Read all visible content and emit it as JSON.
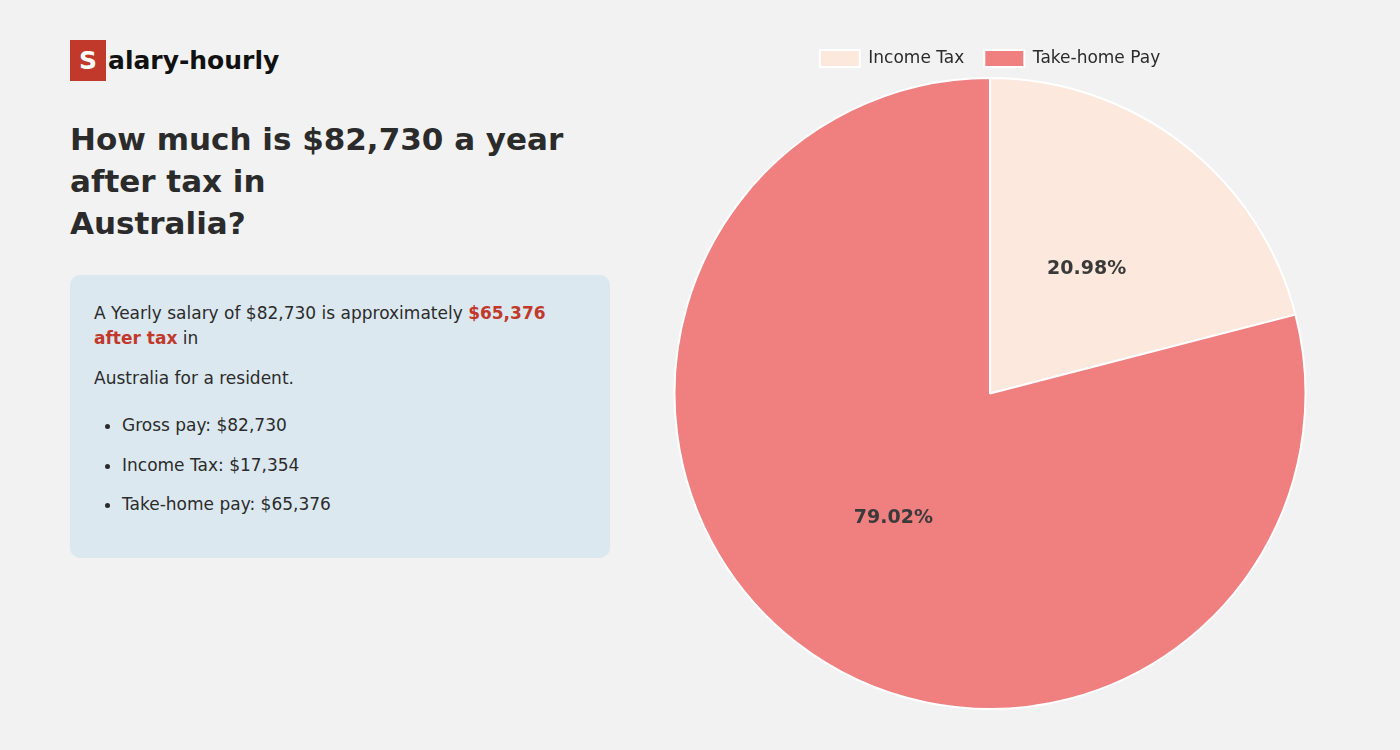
{
  "chart_data": {
    "type": "pie",
    "title": [
      "How much is $82,730 a year after tax in",
      "Australia?"
    ],
    "annotations": {
      "logo": [
        {
          "text": "S",
          "color": "#c0392b"
        },
        {
          "text": "alary-hourly"
        }
      ],
      "summary": [
        [
          {
            "text": "A Yearly salary of $82,730 is approximately "
          },
          {
            "text": "$65,376 after tax",
            "color": "#c0392b"
          },
          {
            "text": " in"
          }
        ],
        [
          {
            "text": "Australia for a resident."
          }
        ]
      ],
      "bullets": [
        "Gross pay: $82,730",
        "Income Tax: $17,354",
        "Take-home pay: $65,376"
      ]
    },
    "categories": [
      "Income Tax",
      "Take-home Pay"
    ],
    "values": [
      20.98,
      79.02
    ],
    "value_labels": [
      "20.98%",
      "79.02%"
    ],
    "colors": [
      "#fce8dc",
      "#f08080"
    ],
    "data_labels": true,
    "legend": "top"
  }
}
